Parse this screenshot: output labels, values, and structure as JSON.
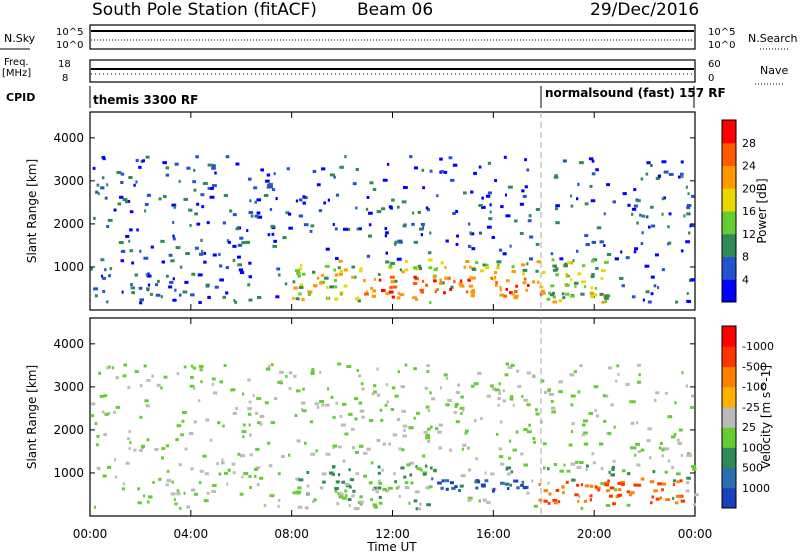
{
  "header": {
    "station": "South Pole Station (fitACF)",
    "beam": "Beam 06",
    "date": "29/Dec/2016"
  },
  "strips": {
    "nsky": {
      "label": "N.Sky",
      "tick_top": "10^5",
      "tick_bottom": "10^0"
    },
    "nsearch": {
      "label": "N.Search",
      "tick_top": "10^5",
      "tick_bottom": "10^0"
    },
    "freq": {
      "label_line1": "Freq.",
      "label_line2": "[MHz]",
      "tick_top": "18",
      "tick_bottom": "8"
    },
    "nave": {
      "label": "Nave",
      "tick_top": "60",
      "tick_bottom": "0"
    },
    "cpid": {
      "label": "CPID",
      "mode1": "themis 3300 RF",
      "mode2": "normalsound (fast) 157 RF"
    }
  },
  "chart_data": [
    {
      "type": "heatmap",
      "title": "",
      "xlabel": "",
      "ylabel": "Slant Range [km]",
      "x_ticks": [
        "00:00",
        "04:00",
        "08:00",
        "12:00",
        "16:00",
        "20:00",
        "00:00"
      ],
      "y_ticks": [
        "1000",
        "2000",
        "3000",
        "4000"
      ],
      "colorbar": {
        "label": "Power [dB]",
        "ticks": [
          "4",
          "8",
          "12",
          "16",
          "20",
          "24",
          "28"
        ],
        "colors": [
          "#0000ff",
          "#2255cc",
          "#2e8b57",
          "#66cc33",
          "#e8d800",
          "#ff9900",
          "#ff5a00",
          "#ff0000"
        ]
      },
      "features": [
        {
          "desc": "strong scatter band",
          "time_start": "10:40",
          "time_end": "18:00",
          "range_km": [
            300,
            900
          ],
          "power_db": 28
        },
        {
          "desc": "moderate scatter",
          "time_start": "09:00",
          "time_end": "20:00",
          "range_km": [
            400,
            1100
          ],
          "power_db": 12
        }
      ]
    },
    {
      "type": "heatmap",
      "title": "",
      "xlabel": "Time UT",
      "ylabel": "Slant Range [km]",
      "x_ticks": [
        "00:00",
        "04:00",
        "08:00",
        "12:00",
        "16:00",
        "20:00",
        "00:00"
      ],
      "y_ticks": [
        "1000",
        "2000",
        "3000",
        "4000"
      ],
      "colorbar": {
        "label": "Velocity [m s^-1]",
        "ticks": [
          "1000",
          "500",
          "100",
          "25",
          "-25",
          "-100",
          "-500",
          "-1000"
        ],
        "colors": [
          "#1a3fbf",
          "#2a6fb0",
          "#2e8b57",
          "#66cc33",
          "#bbbbbb",
          "#ffb000",
          "#ff8000",
          "#ff3300",
          "#ff0000"
        ]
      },
      "features": [
        {
          "desc": "toward radar (blue)",
          "time_start": "13:30",
          "time_end": "17:30",
          "range_km": [
            600,
            900
          ],
          "velocity": 1000
        },
        {
          "desc": "away from radar (orange)",
          "time_start": "17:30",
          "time_end": "23:30",
          "range_km": [
            300,
            900
          ],
          "velocity": -500
        }
      ]
    }
  ]
}
